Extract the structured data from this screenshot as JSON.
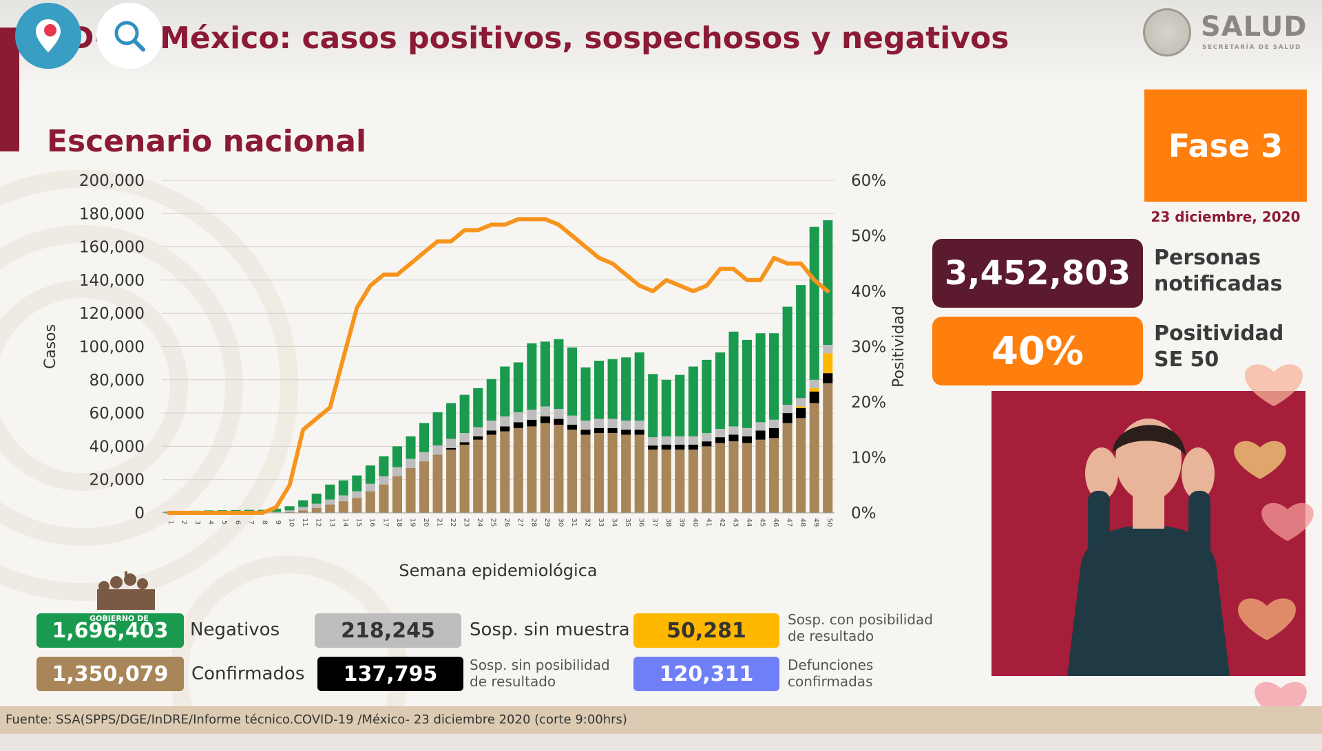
{
  "header": {
    "title": "D-19 México: casos positivos, sospechosos y negativos",
    "logo_text": "SALUD",
    "logo_subtext": "SECRETARÍA DE SALUD"
  },
  "section_title": "Escenario nacional",
  "phase": {
    "label": "Fase 3",
    "color": "#ff7f0e"
  },
  "report_date": "23 diciembre, 2020",
  "stats": {
    "notified": {
      "value": "3,452,803",
      "label_line1": "Personas",
      "label_line2": "notificadas",
      "color": "#5b1a2e"
    },
    "positivity": {
      "value": "40%",
      "label_line1": "Positividad",
      "label_line2": "SE 50",
      "color": "#ff7f0e"
    }
  },
  "legend": {
    "negativos": {
      "value": "1,696,403",
      "label": "Negativos",
      "color": "#1a9a4e"
    },
    "confirmados": {
      "value": "1,350,079",
      "label": "Confirmados",
      "color": "#a8865a"
    },
    "sosp_sin_muestra": {
      "value": "218,245",
      "label": "Sosp. sin muestra",
      "color": "#bdbdbd"
    },
    "sosp_sin_posibilidad": {
      "value": "137,795",
      "label_line1": "Sosp. sin posibilidad",
      "label_line2": "de resultado",
      "color": "#000000"
    },
    "sosp_con_posibilidad": {
      "value": "50,281",
      "label_line1": "Sosp. con posibilidad",
      "label_line2": "de resultado",
      "color": "#ffb800"
    },
    "defunciones": {
      "value": "120,311",
      "label_line1": "Defunciones",
      "label_line2": "confirmadas",
      "color": "#6f7ff7"
    }
  },
  "gobierno_badge": "GOBIERNO DE",
  "footer": "Fuente: SSA(SPPS/DGE/InDRE/Informe técnico.COVID-19 /México- 23 diciembre 2020 (corte 9:00hrs)",
  "chart_data": {
    "type": "bar",
    "stacked": true,
    "xlabel": "Semana epidemiológica",
    "ylabel": "Casos",
    "y2label": "Positividad",
    "ylim": [
      0,
      200000
    ],
    "y2lim": [
      0,
      60
    ],
    "yticks": [
      "0",
      "20,000",
      "40,000",
      "60,000",
      "80,000",
      "100,000",
      "120,000",
      "140,000",
      "160,000",
      "180,000",
      "200,000"
    ],
    "y2ticks": [
      "0%",
      "10%",
      "20%",
      "30%",
      "40%",
      "50%",
      "60%"
    ],
    "grid": true,
    "categories": [
      "1",
      "2",
      "3",
      "4",
      "5",
      "6",
      "7",
      "8",
      "9",
      "10",
      "11",
      "12",
      "13",
      "14",
      "15",
      "16",
      "17",
      "18",
      "19",
      "20",
      "21",
      "22",
      "23",
      "24",
      "25",
      "26",
      "27",
      "28",
      "29",
      "30",
      "31",
      "32",
      "33",
      "34",
      "35",
      "36",
      "37",
      "38",
      "39",
      "40",
      "41",
      "42",
      "43",
      "44",
      "45",
      "46",
      "47",
      "48",
      "49",
      "50"
    ],
    "series": [
      {
        "name": "Confirmados",
        "color": "#a8865a",
        "values": [
          0,
          0,
          0,
          0,
          0,
          0,
          0,
          0,
          100,
          500,
          1500,
          3000,
          5000,
          7000,
          9000,
          13000,
          17000,
          22000,
          27000,
          31000,
          35000,
          38000,
          41000,
          44000,
          47000,
          49000,
          51000,
          52000,
          54000,
          53000,
          50000,
          47000,
          48000,
          48000,
          47000,
          47000,
          38000,
          38000,
          38000,
          38000,
          40000,
          42000,
          43000,
          42000,
          44000,
          45000,
          54000,
          57000,
          66000,
          78000
        ]
      },
      {
        "name": "Sosp. sin posibilidad de resultado",
        "color": "#000000",
        "values": [
          0,
          0,
          0,
          0,
          0,
          0,
          0,
          0,
          0,
          0,
          0,
          0,
          0,
          0,
          0,
          0,
          0,
          0,
          0,
          0,
          0,
          1000,
          1500,
          2000,
          2500,
          3000,
          3500,
          4000,
          4000,
          3500,
          3000,
          3000,
          3000,
          3000,
          3000,
          3000,
          2500,
          3000,
          3000,
          3000,
          3000,
          3500,
          4000,
          4000,
          5500,
          6000,
          6000,
          6000,
          7000,
          6000
        ]
      },
      {
        "name": "Sosp. con posibilidad de resultado",
        "color": "#ffb800",
        "values": [
          0,
          0,
          0,
          0,
          0,
          0,
          0,
          0,
          0,
          0,
          0,
          0,
          0,
          0,
          0,
          0,
          0,
          0,
          0,
          0,
          0,
          0,
          0,
          0,
          0,
          0,
          0,
          0,
          0,
          0,
          0,
          0,
          0,
          0,
          0,
          0,
          0,
          0,
          0,
          0,
          0,
          0,
          0,
          0,
          0,
          0,
          0,
          1000,
          2000,
          12000
        ]
      },
      {
        "name": "Sosp. sin muestra",
        "color": "#bdbdbd",
        "values": [
          100,
          200,
          300,
          300,
          300,
          300,
          300,
          300,
          500,
          1000,
          2000,
          2500,
          3000,
          3500,
          4000,
          4500,
          5000,
          5500,
          5500,
          5500,
          5500,
          5500,
          5500,
          5500,
          6000,
          6000,
          6000,
          6000,
          6000,
          6000,
          5500,
          5500,
          5500,
          5500,
          5500,
          5500,
          5000,
          5000,
          5000,
          5000,
          5000,
          5000,
          5000,
          5000,
          5000,
          5000,
          5000,
          5000,
          5000,
          5000
        ]
      },
      {
        "name": "Negativos",
        "color": "#1a9a4e",
        "values": [
          500,
          800,
          1000,
          1200,
          1300,
          1400,
          1500,
          1500,
          1900,
          2500,
          4000,
          6000,
          9000,
          9000,
          9500,
          11000,
          12000,
          12500,
          13500,
          17500,
          20000,
          21500,
          23000,
          23500,
          25000,
          30000,
          30000,
          40000,
          39000,
          42000,
          41000,
          32000,
          35000,
          36000,
          38000,
          41000,
          38000,
          34000,
          37000,
          42000,
          44000,
          46000,
          57000,
          53000,
          53500,
          52000,
          59000,
          68000,
          92000,
          75000
        ]
      }
    ],
    "positivity_line": {
      "name": "Positividad",
      "color": "#f7941d",
      "values": [
        0,
        0,
        0,
        0,
        0,
        0,
        0,
        0,
        1,
        5,
        15,
        17,
        19,
        28,
        37,
        41,
        43,
        43,
        45,
        47,
        49,
        49,
        51,
        51,
        52,
        52,
        53,
        53,
        53,
        52,
        50,
        48,
        46,
        45,
        43,
        41,
        40,
        42,
        41,
        40,
        41,
        44,
        44,
        42,
        42,
        46,
        45,
        45,
        42,
        40
      ]
    }
  }
}
